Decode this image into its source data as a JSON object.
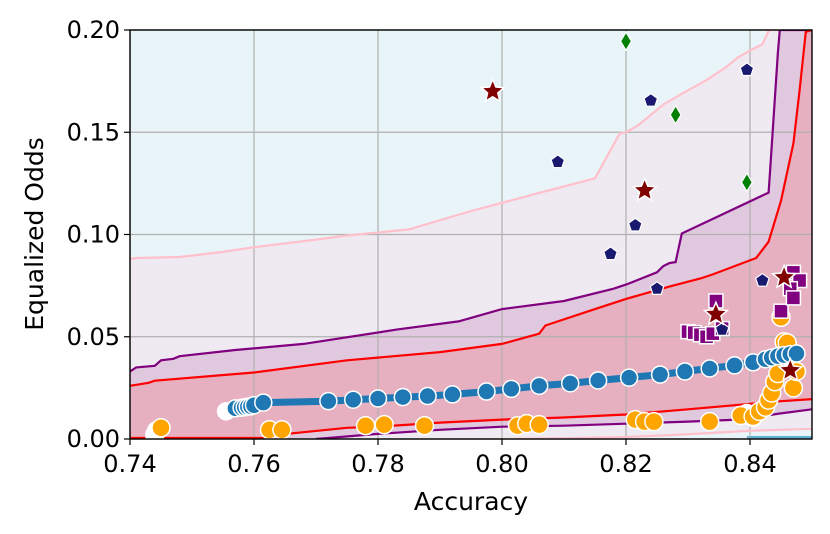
{
  "chart_data": {
    "type": "scatter",
    "title": "",
    "xlabel": "Accuracy",
    "ylabel": "Equalized Odds",
    "xlim": [
      0.74,
      0.85
    ],
    "ylim": [
      0.0,
      0.2
    ],
    "xticks": [
      "0.74",
      "0.76",
      "0.78",
      "0.80",
      "0.82",
      "0.84"
    ],
    "yticks": [
      "0.00",
      "0.05",
      "0.10",
      "0.15",
      "0.20"
    ],
    "grid": true,
    "colors": {
      "background_light_blue": "#e8f4f8",
      "light_pink_band": "#efe9f1",
      "purple_band": "#e0c8df",
      "red_band": "#e6b0c0",
      "pink_line": "#ffc0cb",
      "purple_line": "#800080",
      "red_line": "#ff0000",
      "blue_main": "#1f77b4",
      "orange": "#ffa500",
      "navy": "#191970",
      "dark_red": "#800000",
      "green": "#008000",
      "purple_marker": "#800080",
      "teal_edge": "#5fb4cf"
    },
    "series": [
      {
        "marker": "blue-circle-line",
        "x": [
          0.7555,
          0.757,
          0.758,
          0.7585,
          0.759,
          0.7595,
          0.76,
          0.7615,
          0.772,
          0.776,
          0.78,
          0.784,
          0.788,
          0.792,
          0.7975,
          0.8015,
          0.806,
          0.811,
          0.8155,
          0.8205,
          0.8255,
          0.8295,
          0.8335,
          0.8375,
          0.8405,
          0.8425,
          0.8435,
          0.8445,
          0.8455,
          0.8465,
          0.8475
        ],
        "y": [
          0.0135,
          0.015,
          0.0153,
          0.0155,
          0.0158,
          0.016,
          0.0165,
          0.0178,
          0.0185,
          0.0192,
          0.0198,
          0.0205,
          0.021,
          0.0218,
          0.0232,
          0.0245,
          0.026,
          0.0272,
          0.0286,
          0.03,
          0.0315,
          0.033,
          0.0345,
          0.036,
          0.0375,
          0.039,
          0.0398,
          0.0405,
          0.041,
          0.0415,
          0.0418
        ]
      },
      {
        "marker": "orange-circle",
        "x": [
          0.745,
          0.7625,
          0.7645,
          0.778,
          0.781,
          0.7875,
          0.8025,
          0.804,
          0.806,
          0.8215,
          0.823,
          0.8245,
          0.8335,
          0.8385,
          0.8405,
          0.8415,
          0.8425,
          0.843,
          0.8435,
          0.844,
          0.8445,
          0.845,
          0.8455,
          0.846,
          0.847,
          0.8475
        ],
        "y": [
          0.0055,
          0.0045,
          0.0045,
          0.0065,
          0.007,
          0.0065,
          0.0065,
          0.0075,
          0.007,
          0.0095,
          0.0085,
          0.0085,
          0.0085,
          0.0115,
          0.011,
          0.0135,
          0.0155,
          0.019,
          0.0225,
          0.028,
          0.032,
          0.0595,
          0.0475,
          0.047,
          0.025,
          0.033
        ]
      },
      {
        "marker": "white-circle",
        "x": [
          0.7443,
          0.744,
          0.8385,
          0.8395,
          0.8405,
          0.8465
        ],
        "y": [
          0.004,
          0.002,
          0.0115,
          0.0125,
          0.0105,
          0.0395
        ]
      },
      {
        "marker": "navy-pentagon",
        "x": [
          0.809,
          0.8175,
          0.8215,
          0.824,
          0.825,
          0.8355,
          0.8395,
          0.842
        ],
        "y": [
          0.1355,
          0.0905,
          0.1045,
          0.1655,
          0.0735,
          0.0535,
          0.1805,
          0.0775
        ]
      },
      {
        "marker": "dark-red-star",
        "x": [
          0.7985,
          0.823,
          0.8345,
          0.8455,
          0.8465
        ],
        "y": [
          0.17,
          0.1215,
          0.061,
          0.079,
          0.0335
        ]
      },
      {
        "marker": "green-diamond",
        "x": [
          0.82,
          0.828,
          0.8395
        ],
        "y": [
          0.1945,
          0.1585,
          0.1255
        ]
      },
      {
        "marker": "purple-square",
        "x": [
          0.83,
          0.831,
          0.832,
          0.833,
          0.834,
          0.8345,
          0.8355,
          0.845,
          0.847,
          0.848,
          0.8465,
          0.847
        ],
        "y": [
          0.0525,
          0.052,
          0.051,
          0.05,
          0.0515,
          0.0675,
          0.054,
          0.0625,
          0.0815,
          0.0775,
          0.0735,
          0.069
        ]
      }
    ],
    "bands": {
      "pink_upper": {
        "x": [
          0.74,
          0.741,
          0.748,
          0.755,
          0.76,
          0.77,
          0.775,
          0.785,
          0.795,
          0.805,
          0.815,
          0.819,
          0.82,
          0.822,
          0.826,
          0.83,
          0.833,
          0.836,
          0.838,
          0.84,
          0.842,
          0.843,
          0.8432,
          0.85
        ],
        "y": [
          0.088,
          0.0885,
          0.089,
          0.0915,
          0.0938,
          0.0975,
          0.0995,
          0.1025,
          0.1115,
          0.1195,
          0.1275,
          0.1495,
          0.15,
          0.1535,
          0.1635,
          0.1705,
          0.1755,
          0.1815,
          0.1865,
          0.19,
          0.193,
          0.1995,
          0.2,
          0.2
        ]
      },
      "purple_upper": {
        "x": [
          0.74,
          0.741,
          0.744,
          0.745,
          0.747,
          0.748,
          0.757,
          0.768,
          0.783,
          0.793,
          0.8,
          0.81,
          0.818,
          0.82,
          0.825,
          0.826,
          0.827,
          0.828,
          0.829,
          0.843,
          0.8432,
          0.8445,
          0.8448,
          0.85
        ],
        "y": [
          0.033,
          0.035,
          0.0358,
          0.0385,
          0.0392,
          0.0405,
          0.0435,
          0.0465,
          0.0535,
          0.0575,
          0.0635,
          0.0675,
          0.0735,
          0.0755,
          0.0815,
          0.0845,
          0.086,
          0.0865,
          0.1005,
          0.1205,
          0.129,
          0.189,
          0.2,
          0.2
        ]
      },
      "red_upper": {
        "x": [
          0.74,
          0.741,
          0.743,
          0.744,
          0.76,
          0.775,
          0.79,
          0.8,
          0.806,
          0.807,
          0.815,
          0.82,
          0.827,
          0.832,
          0.834,
          0.841,
          0.843,
          0.845,
          0.847,
          0.848,
          0.849,
          0.85
        ],
        "y": [
          0.026,
          0.0265,
          0.0275,
          0.0285,
          0.0325,
          0.0385,
          0.0425,
          0.0465,
          0.0515,
          0.0555,
          0.0635,
          0.0685,
          0.0745,
          0.0785,
          0.0805,
          0.0885,
          0.0965,
          0.1165,
          0.1445,
          0.1705,
          0.199,
          0.2
        ]
      },
      "red_lower": {
        "x": [
          0.74,
          0.762,
          0.763,
          0.775,
          0.78,
          0.79,
          0.8,
          0.81,
          0.82,
          0.83,
          0.845,
          0.85
        ],
        "y": [
          0.0005,
          0.0005,
          0.0018,
          0.0055,
          0.006,
          0.008,
          0.0095,
          0.0105,
          0.012,
          0.0145,
          0.0185,
          0.0195
        ]
      },
      "purple_lower": {
        "x": [
          0.77,
          0.78,
          0.79,
          0.8,
          0.81,
          0.82,
          0.83,
          0.838,
          0.845,
          0.85
        ],
        "y": [
          0.0,
          0.0025,
          0.0045,
          0.006,
          0.0065,
          0.0075,
          0.0085,
          0.0095,
          0.0125,
          0.0145
        ]
      },
      "pink_lower": {
        "x": [
          0.802,
          0.812,
          0.82,
          0.828,
          0.834,
          0.84,
          0.845,
          0.85
        ],
        "y": [
          0.0,
          0.0005,
          0.001,
          0.002,
          0.003,
          0.004,
          0.0045,
          0.005
        ]
      }
    }
  }
}
